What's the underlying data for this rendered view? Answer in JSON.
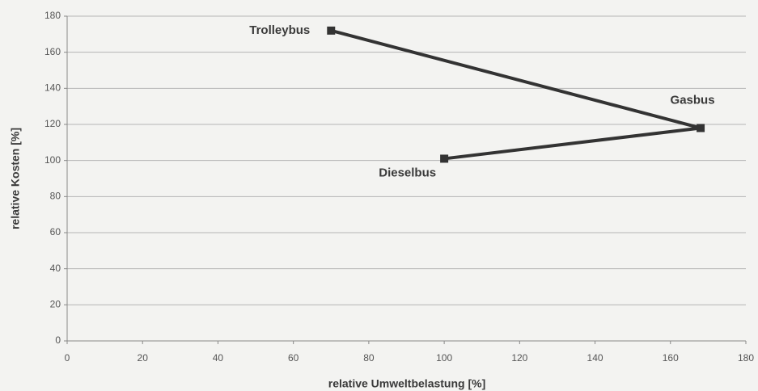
{
  "chart_data": {
    "type": "line",
    "x": [
      70,
      168,
      100
    ],
    "values": [
      172,
      118,
      101
    ],
    "point_labels": [
      "Trolleybus",
      "Gasbus",
      "Dieselbus"
    ],
    "color": "#333333",
    "x_label": "relative Umweltbelastung [%]",
    "y_label": "relative Kosten [%]",
    "xlim": [
      0,
      180
    ],
    "xticks": [
      0,
      20,
      40,
      60,
      80,
      100,
      120,
      140,
      160,
      180
    ],
    "ylim": [
      0,
      180
    ],
    "yticks": [
      0,
      20,
      40,
      60,
      80,
      100,
      120,
      140,
      160,
      180
    ],
    "grid": true
  }
}
